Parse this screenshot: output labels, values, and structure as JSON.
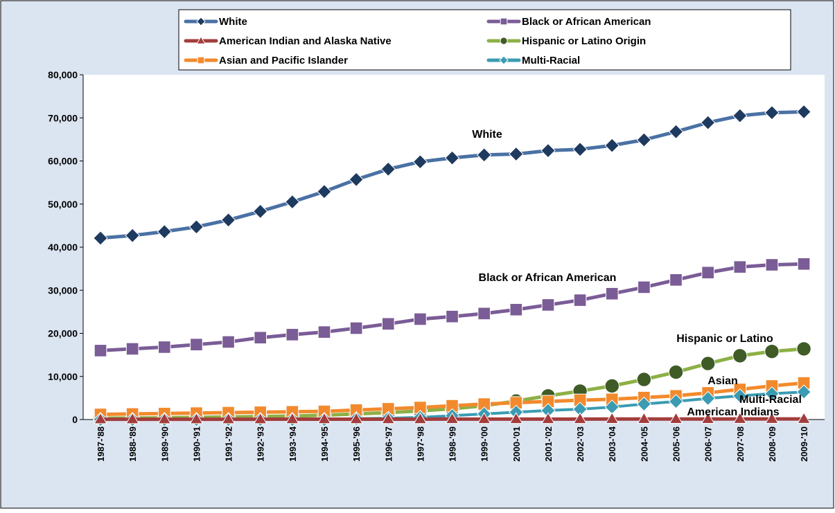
{
  "chart_data": {
    "type": "line",
    "x": [
      "1987-'88",
      "1988-'89",
      "1989-'90",
      "1990-'91",
      "1991-'92",
      "1992-'93",
      "1993-'94",
      "1994-'95",
      "1995-'96",
      "1996-'97",
      "1997-'98",
      "1998-'99",
      "1999-'00",
      "2000-'01",
      "2001-'02",
      "2002-'03",
      "2003-'04",
      "2004-'05",
      "2005-'06",
      "2006-'07",
      "2007-'08",
      "2008-'09",
      "2009-'10"
    ],
    "ylim": [
      0,
      80000
    ],
    "yticks": [
      0,
      10000,
      20000,
      30000,
      40000,
      50000,
      60000,
      70000,
      80000
    ],
    "ytick_labels": [
      "0",
      "10,000",
      "20,000",
      "30,000",
      "40,000",
      "50,000",
      "60,000",
      "70,000",
      "80,000"
    ],
    "grid": false,
    "legend_position": "top",
    "colors": {
      "background": "#dbe5f1",
      "plot_background": "#ffffff",
      "legend_background": "#ffffff",
      "axis": "#000000"
    },
    "series": [
      {
        "name": "White",
        "color": "#4a71a4",
        "marker": "diamond",
        "marker_fill": "#1f3a5f",
        "values": [
          42100,
          42700,
          43600,
          44700,
          46300,
          48300,
          50500,
          52900,
          55700,
          58100,
          59800,
          60700,
          61400,
          61600,
          62400,
          62700,
          63600,
          64900,
          66800,
          68900,
          70500,
          71200,
          71400
        ]
      },
      {
        "name": "Black or African American",
        "color": "#7a5c96",
        "marker": "square",
        "marker_fill": "#7a5c96",
        "values": [
          16000,
          16400,
          16800,
          17400,
          18000,
          19000,
          19700,
          20300,
          21200,
          22200,
          23300,
          23900,
          24600,
          25500,
          26600,
          27700,
          29200,
          30700,
          32400,
          34100,
          35400,
          35900,
          36100
        ]
      },
      {
        "name": "American Indian and Alaska Native",
        "color": "#a33d3d",
        "marker": "triangle",
        "marker_fill": "#a33d3d",
        "values": [
          60,
          60,
          60,
          70,
          70,
          70,
          80,
          80,
          80,
          90,
          90,
          100,
          100,
          110,
          110,
          110,
          120,
          120,
          130,
          130,
          140,
          140,
          150
        ]
      },
      {
        "name": "Hispanic or Latino Origin",
        "color": "#8db045",
        "marker": "circle",
        "marker_fill": "#3f5b26",
        "values": [
          300,
          350,
          400,
          500,
          600,
          700,
          800,
          1000,
          1300,
          1600,
          2000,
          2500,
          3200,
          4300,
          5500,
          6600,
          7800,
          9300,
          11000,
          13000,
          14800,
          15800,
          16400
        ]
      },
      {
        "name": "Asian and Pacific Islander",
        "color": "#f28a2d",
        "marker": "square",
        "marker_fill": "#f28a2d",
        "values": [
          1200,
          1300,
          1400,
          1500,
          1600,
          1700,
          1800,
          1900,
          2200,
          2500,
          2800,
          3200,
          3600,
          3900,
          4200,
          4500,
          4700,
          5100,
          5500,
          6200,
          7000,
          7800,
          8500
        ]
      },
      {
        "name": "Multi-Racial",
        "color": "#3a9bb2",
        "marker": "diamond",
        "marker_fill": "#3a9bb2",
        "values": [
          0,
          0,
          0,
          0,
          0,
          0,
          0,
          0,
          200,
          300,
          500,
          900,
          1300,
          1700,
          2100,
          2400,
          2900,
          3600,
          4200,
          4900,
          5500,
          6000,
          6400
        ]
      }
    ],
    "annotations": [
      {
        "text": "White",
        "series": "White"
      },
      {
        "text": "Black or African American",
        "series": "Black or African American"
      },
      {
        "text": "Hispanic or Latino",
        "series": "Hispanic or Latino Origin"
      },
      {
        "text": "Asian",
        "series": "Asian and Pacific Islander"
      },
      {
        "text": "Multi-Racial",
        "series": "Multi-Racial"
      },
      {
        "text": "American Indians",
        "series": "American Indian and Alaska Native"
      }
    ]
  }
}
